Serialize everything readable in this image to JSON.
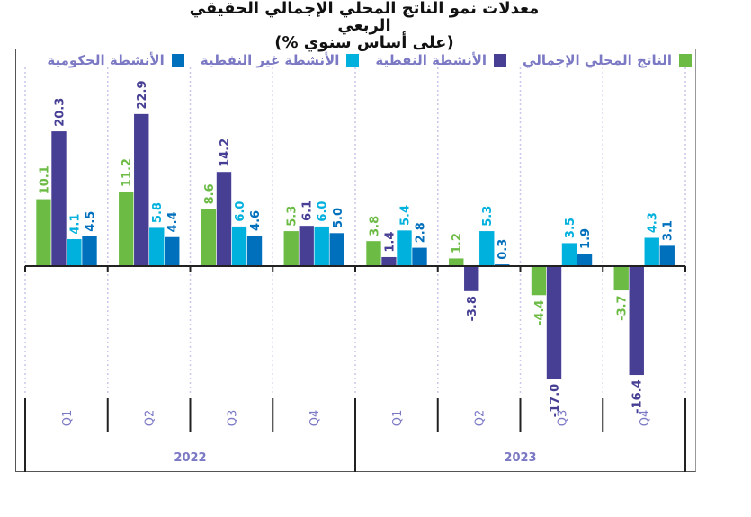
{
  "title_line1": "معدلات نمو الناتج المحلي الإجمالي الحقيقي الربعي",
  "title_line2": "(على أساس سنوي %)",
  "chart_data": {
    "type": "bar",
    "title": "معدلات نمو الناتج المحلي الإجمالي الحقيقي الربعي (على أساس سنوي %)",
    "xlabel": "",
    "ylabel": "",
    "ylim": [
      -20,
      25
    ],
    "grid": "vertical dotted separators",
    "legend_position": "top",
    "categories": [
      "Q1",
      "Q2",
      "Q3",
      "Q4",
      "Q1",
      "Q2",
      "Q3",
      "Q4"
    ],
    "groups": [
      {
        "label": "2022",
        "categories": [
          "Q1",
          "Q2",
          "Q3",
          "Q4"
        ]
      },
      {
        "label": "2023",
        "categories": [
          "Q1",
          "Q2",
          "Q3",
          "Q4"
        ]
      }
    ],
    "series": [
      {
        "name": "الناتج المحلي الإجمالي",
        "color": "#6cbb45",
        "values": [
          10.1,
          11.2,
          8.6,
          5.3,
          3.8,
          1.2,
          -4.4,
          -3.7
        ]
      },
      {
        "name": "الأنشطة النفطية",
        "color": "#463f94",
        "values": [
          20.3,
          22.9,
          14.2,
          6.1,
          1.4,
          -3.8,
          -17.0,
          -16.4
        ]
      },
      {
        "name": "الأنشطة غير النفطية",
        "color": "#00b0dd",
        "values": [
          4.1,
          5.8,
          6.0,
          6.0,
          5.4,
          5.3,
          3.5,
          4.3
        ]
      },
      {
        "name": "الأنشطة الحكومية",
        "color": "#0070bd",
        "values": [
          4.5,
          4.4,
          4.6,
          5.0,
          2.8,
          0.3,
          1.9,
          3.1
        ]
      }
    ],
    "axis_label_color": "#7b78c4"
  }
}
